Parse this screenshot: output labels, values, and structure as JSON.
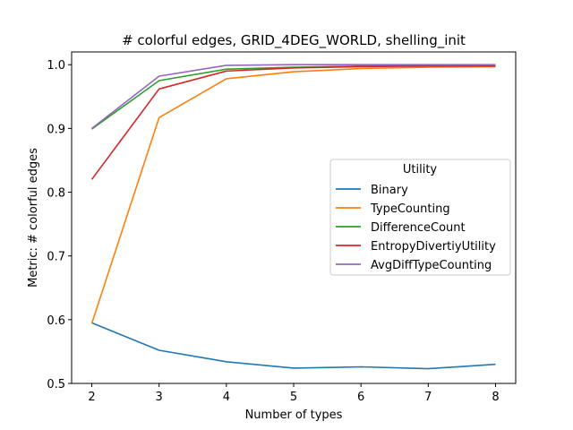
{
  "chart_data": {
    "type": "line",
    "title": "# colorful edges, GRID_4DEG_WORLD, shelling_init",
    "xlabel": "Number of types",
    "ylabel": "Metric: # colorful edges",
    "x": [
      2,
      3,
      4,
      5,
      6,
      7,
      8
    ],
    "xlim": [
      1.7,
      8.3
    ],
    "ylim": [
      0.5,
      1.02
    ],
    "xticks": [
      2,
      3,
      4,
      5,
      6,
      7,
      8
    ],
    "yticks": [
      0.5,
      0.6,
      0.7,
      0.8,
      0.9,
      1.0
    ],
    "ytick_labels": [
      "0.5",
      "0.6",
      "0.7",
      "0.8",
      "0.9",
      "1.0"
    ],
    "grid": false,
    "legend": {
      "title": "Utility",
      "placement": "center-right"
    },
    "series": [
      {
        "name": "Binary",
        "color": "#1f77b4",
        "values": [
          0.595,
          0.552,
          0.534,
          0.524,
          0.526,
          0.523,
          0.53
        ]
      },
      {
        "name": "TypeCounting",
        "color": "#ff7f0e",
        "values": [
          0.594,
          0.917,
          0.978,
          0.989,
          0.994,
          0.996,
          0.997
        ]
      },
      {
        "name": "DifferenceCount",
        "color": "#2ca02c",
        "values": [
          0.899,
          0.975,
          0.993,
          0.996,
          0.998,
          0.999,
          0.999
        ]
      },
      {
        "name": "EntropyDivertiyUtility",
        "color": "#d62728",
        "values": [
          0.82,
          0.962,
          0.99,
          0.995,
          0.997,
          0.998,
          0.998
        ]
      },
      {
        "name": "AvgDiffTypeCounting",
        "color": "#9467bd",
        "values": [
          0.9,
          0.982,
          0.999,
          1.0,
          1.0,
          1.0,
          1.0
        ]
      }
    ]
  }
}
